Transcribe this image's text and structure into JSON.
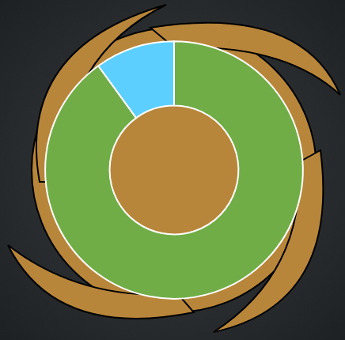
{
  "chart_data": {
    "type": "pie",
    "values": [
      90,
      10
    ],
    "colors": [
      "#70ad47",
      "#5ccfff"
    ],
    "data_labels": false
  }
}
